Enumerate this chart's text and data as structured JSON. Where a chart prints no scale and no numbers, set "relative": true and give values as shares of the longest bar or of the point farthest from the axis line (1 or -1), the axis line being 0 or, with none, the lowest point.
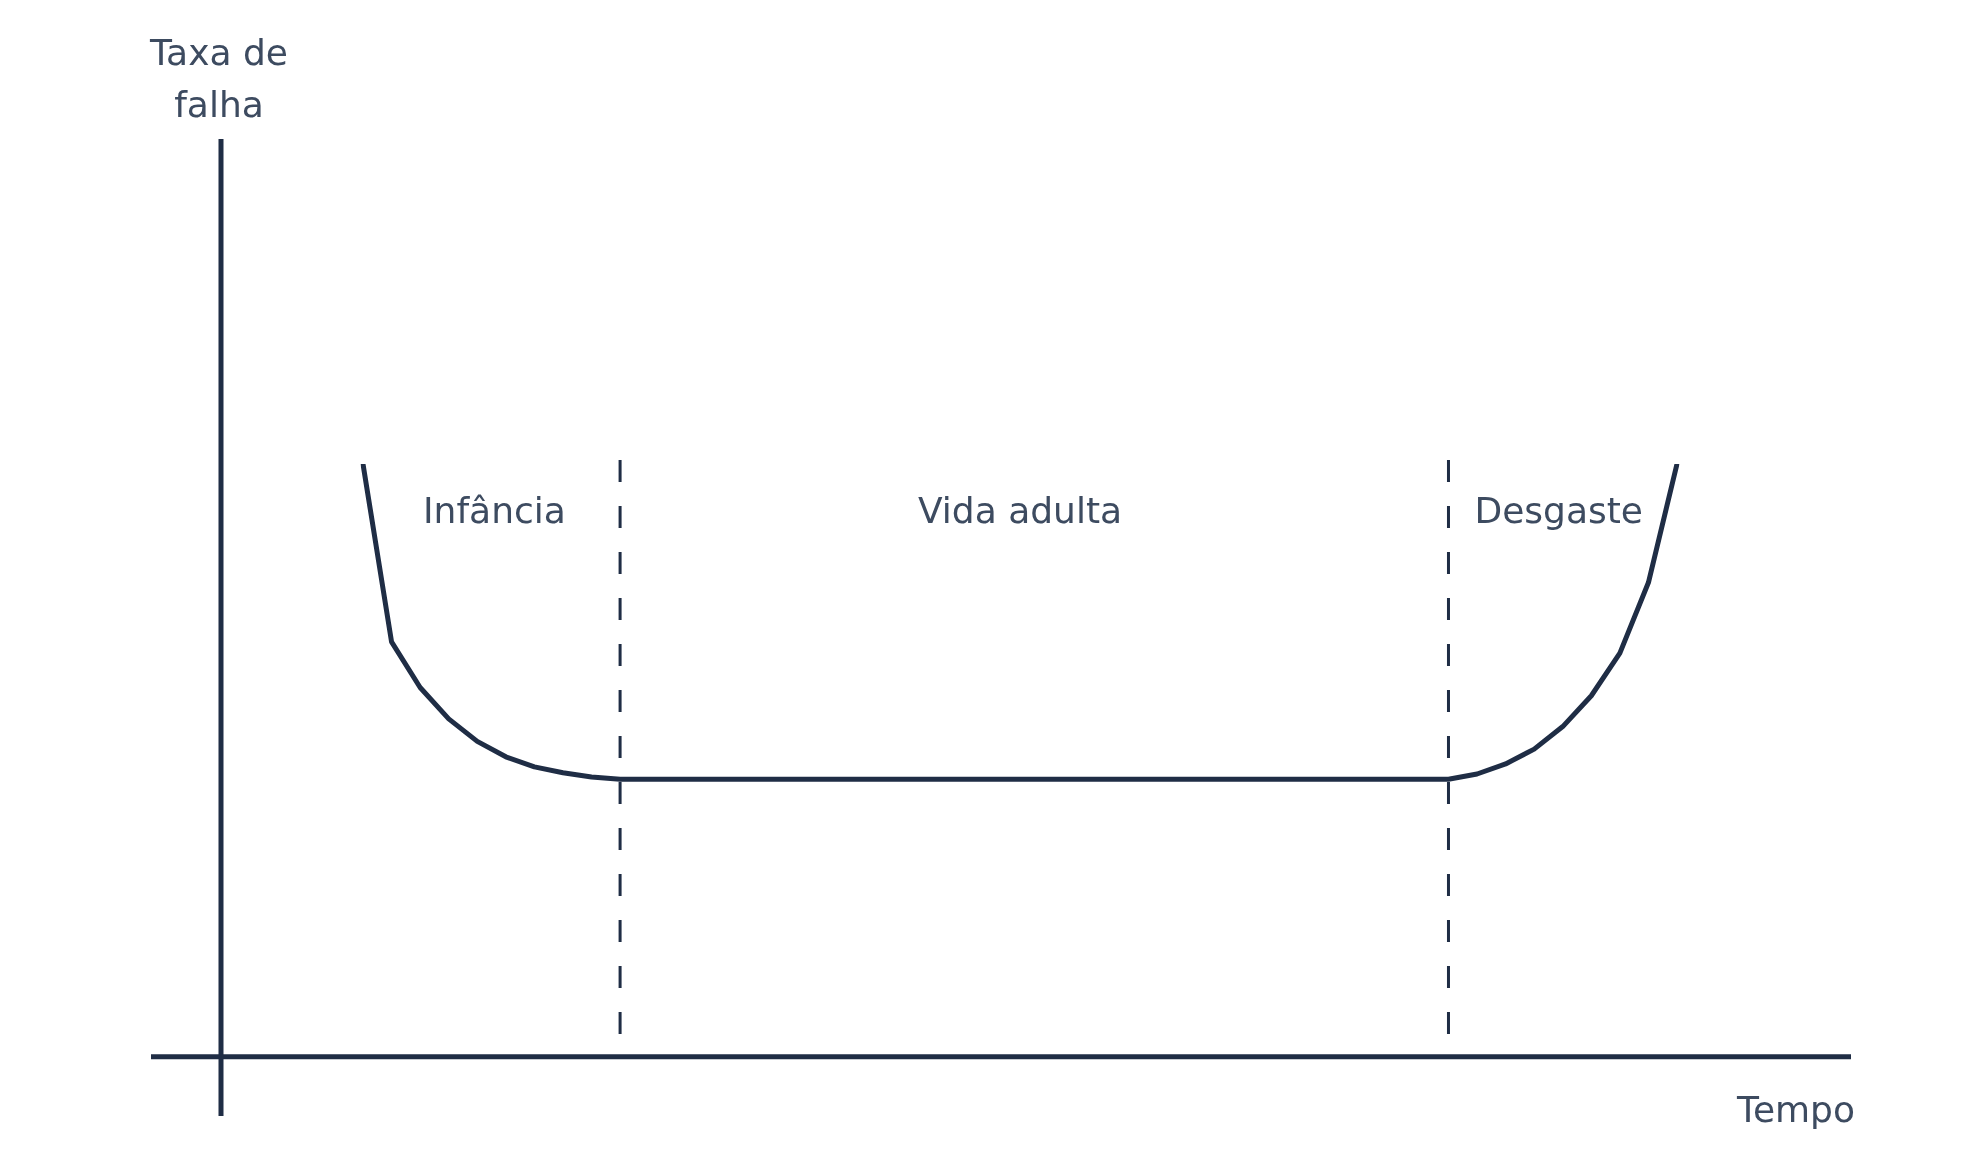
{
  "chart_data": {
    "type": "line",
    "relative": true,
    "xlabel": "Tempo",
    "categories": [
      null,
      null,
      null,
      null,
      null,
      null,
      null,
      null,
      null,
      null,
      null,
      null,
      null,
      null,
      null,
      null,
      null,
      null,
      null,
      null,
      null,
      null,
      null,
      null,
      null,
      null,
      null,
      null,
      null,
      null,
      null,
      null,
      null,
      null,
      null,
      null,
      null,
      null,
      null,
      null,
      null,
      null,
      null,
      null,
      null,
      null,
      null
    ],
    "series": [
      {
        "color": "#1f2d45",
        "values": [
          1,
          0.7,
          0.623,
          0.57,
          0.532,
          0.506,
          0.489,
          0.479,
          0.472,
          0.468,
          0.468,
          0.468,
          0.468,
          0.468,
          0.468,
          0.468,
          0.468,
          0.468,
          0.468,
          0.468,
          0.468,
          0.468,
          0.468,
          0.468,
          0.468,
          0.468,
          0.468,
          0.468,
          0.468,
          0.468,
          0.468,
          0.468,
          0.468,
          0.468,
          0.468,
          0.468,
          0.468,
          0.468,
          0.468,
          0.477,
          0.494,
          0.519,
          0.557,
          0.609,
          0.681,
          0.8,
          1
        ]
      }
    ],
    "annotations": [
      "Taxa de falha",
      "Infância",
      "Vida adulta",
      "Desgaste"
    ]
  }
}
